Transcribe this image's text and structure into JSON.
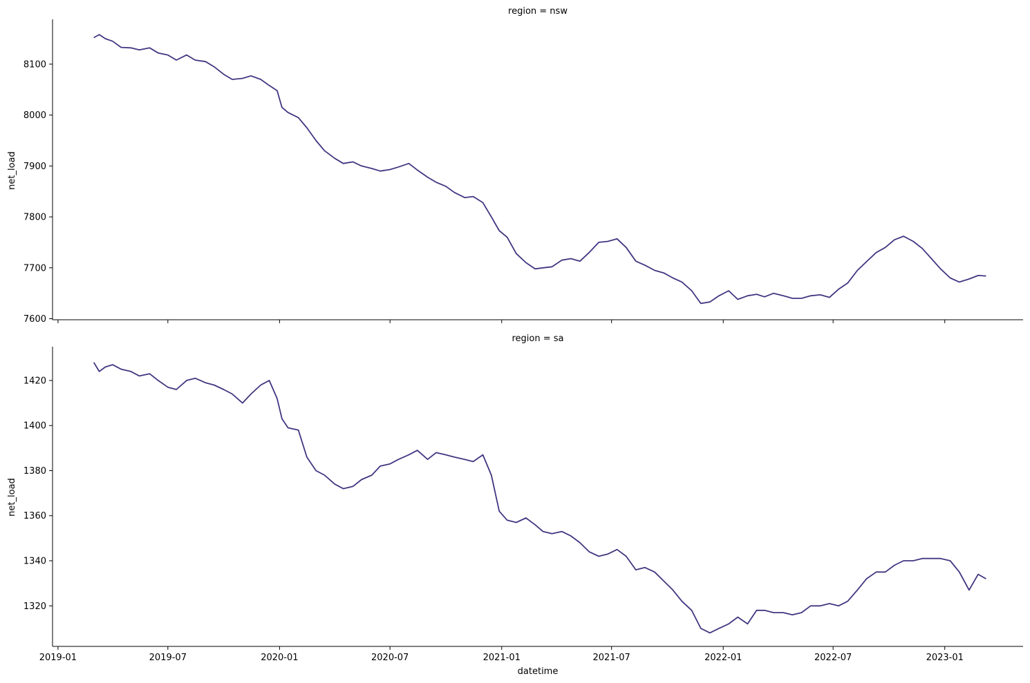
{
  "line_color": "#3f3680",
  "xlabel": "datetime",
  "x_ticks": [
    "2019-01",
    "2019-07",
    "2020-01",
    "2020-07",
    "2021-01",
    "2021-07",
    "2022-01",
    "2022-07",
    "2023-01"
  ],
  "chart_data": [
    {
      "type": "line",
      "title": "region = nsw",
      "xlabel": "",
      "ylabel": "net_load",
      "x_range": [
        "2018-12-23",
        "2023-05-10"
      ],
      "ylim": [
        7598,
        8188
      ],
      "y_ticks": [
        7600,
        7700,
        7800,
        7900,
        8000,
        8100
      ],
      "grid": false,
      "series": [
        {
          "x": [
            "2019-03-01",
            "2019-03-10",
            "2019-03-20",
            "2019-04-01",
            "2019-04-15",
            "2019-05-01",
            "2019-05-15",
            "2019-06-01",
            "2019-06-15",
            "2019-07-01",
            "2019-07-15",
            "2019-08-01",
            "2019-08-15",
            "2019-09-01",
            "2019-09-15",
            "2019-10-01",
            "2019-10-15",
            "2019-11-01",
            "2019-11-15",
            "2019-12-01",
            "2019-12-15",
            "2019-12-28",
            "2020-01-05",
            "2020-01-15",
            "2020-02-01",
            "2020-02-15",
            "2020-03-01",
            "2020-03-15",
            "2020-04-01",
            "2020-04-15",
            "2020-05-01",
            "2020-05-15",
            "2020-06-01",
            "2020-06-15",
            "2020-07-01",
            "2020-07-15",
            "2020-08-01",
            "2020-08-15",
            "2020-09-01",
            "2020-09-15",
            "2020-10-01",
            "2020-10-15",
            "2020-11-01",
            "2020-11-15",
            "2020-12-01",
            "2020-12-15",
            "2020-12-28",
            "2021-01-10",
            "2021-01-25",
            "2021-02-10",
            "2021-02-25",
            "2021-03-10",
            "2021-03-25",
            "2021-04-10",
            "2021-04-25",
            "2021-05-10",
            "2021-05-25",
            "2021-06-10",
            "2021-06-25",
            "2021-07-10",
            "2021-07-25",
            "2021-08-10",
            "2021-08-25",
            "2021-09-10",
            "2021-09-25",
            "2021-10-10",
            "2021-10-25",
            "2021-11-10",
            "2021-11-25",
            "2021-12-10",
            "2021-12-25",
            "2022-01-10",
            "2022-01-25",
            "2022-02-10",
            "2022-02-25",
            "2022-03-10",
            "2022-03-25",
            "2022-04-10",
            "2022-04-25",
            "2022-05-10",
            "2022-05-25",
            "2022-06-10",
            "2022-06-25",
            "2022-07-10",
            "2022-07-25",
            "2022-08-10",
            "2022-08-25",
            "2022-09-10",
            "2022-09-25",
            "2022-10-10",
            "2022-10-25",
            "2022-11-10",
            "2022-11-25",
            "2022-12-10",
            "2022-12-25",
            "2023-01-10",
            "2023-01-25",
            "2023-02-10",
            "2023-02-25",
            "2023-03-10"
          ],
          "values": [
            8152,
            8158,
            8150,
            8145,
            8133,
            8132,
            8128,
            8132,
            8122,
            8118,
            8108,
            8118,
            8108,
            8105,
            8095,
            8080,
            8070,
            8072,
            8077,
            8070,
            8058,
            8048,
            8015,
            8005,
            7995,
            7975,
            7950,
            7930,
            7915,
            7905,
            7908,
            7900,
            7895,
            7890,
            7893,
            7898,
            7905,
            7892,
            7878,
            7868,
            7860,
            7848,
            7838,
            7840,
            7828,
            7800,
            7773,
            7760,
            7728,
            7710,
            7698,
            7700,
            7702,
            7715,
            7718,
            7713,
            7730,
            7750,
            7752,
            7757,
            7740,
            7713,
            7705,
            7695,
            7690,
            7680,
            7672,
            7655,
            7630,
            7633,
            7645,
            7655,
            7638,
            7645,
            7648,
            7643,
            7650,
            7645,
            7640,
            7640,
            7645,
            7647,
            7642,
            7658,
            7670,
            7695,
            7712,
            7730,
            7740,
            7755,
            7762,
            7752,
            7738,
            7718,
            7698,
            7680,
            7672,
            7678,
            7685,
            7684
          ]
        }
      ]
    },
    {
      "type": "line",
      "title": "region = sa",
      "xlabel": "datetime",
      "ylabel": "net_load",
      "x_range": [
        "2018-12-23",
        "2023-05-10"
      ],
      "ylim": [
        1302,
        1435
      ],
      "y_ticks": [
        1320,
        1340,
        1360,
        1380,
        1400,
        1420
      ],
      "grid": false,
      "series": [
        {
          "x": [
            "2019-03-01",
            "2019-03-10",
            "2019-03-20",
            "2019-04-01",
            "2019-04-15",
            "2019-05-01",
            "2019-05-15",
            "2019-06-01",
            "2019-06-15",
            "2019-07-01",
            "2019-07-15",
            "2019-08-01",
            "2019-08-15",
            "2019-09-01",
            "2019-09-15",
            "2019-10-01",
            "2019-10-15",
            "2019-11-01",
            "2019-11-15",
            "2019-12-01",
            "2019-12-15",
            "2019-12-28",
            "2020-01-05",
            "2020-01-15",
            "2020-02-01",
            "2020-02-15",
            "2020-03-01",
            "2020-03-15",
            "2020-04-01",
            "2020-04-15",
            "2020-05-01",
            "2020-05-15",
            "2020-06-01",
            "2020-06-15",
            "2020-07-01",
            "2020-07-15",
            "2020-08-01",
            "2020-08-15",
            "2020-09-01",
            "2020-09-15",
            "2020-10-01",
            "2020-10-15",
            "2020-11-01",
            "2020-11-15",
            "2020-12-01",
            "2020-12-15",
            "2020-12-28",
            "2021-01-10",
            "2021-01-25",
            "2021-02-10",
            "2021-02-25",
            "2021-03-10",
            "2021-03-25",
            "2021-04-10",
            "2021-04-25",
            "2021-05-10",
            "2021-05-25",
            "2021-06-10",
            "2021-06-25",
            "2021-07-10",
            "2021-07-25",
            "2021-08-10",
            "2021-08-25",
            "2021-09-10",
            "2021-09-25",
            "2021-10-10",
            "2021-10-25",
            "2021-11-10",
            "2021-11-25",
            "2021-12-10",
            "2021-12-25",
            "2022-01-10",
            "2022-01-25",
            "2022-02-10",
            "2022-02-25",
            "2022-03-10",
            "2022-03-25",
            "2022-04-10",
            "2022-04-25",
            "2022-05-10",
            "2022-05-25",
            "2022-06-10",
            "2022-06-25",
            "2022-07-10",
            "2022-07-25",
            "2022-08-10",
            "2022-08-25",
            "2022-09-10",
            "2022-09-25",
            "2022-10-10",
            "2022-10-25",
            "2022-11-10",
            "2022-11-25",
            "2022-12-10",
            "2022-12-25",
            "2023-01-10",
            "2023-01-25",
            "2023-02-10",
            "2023-02-25",
            "2023-03-10"
          ],
          "values": [
            1428,
            1424,
            1426,
            1427,
            1425,
            1424,
            1422,
            1423,
            1420,
            1417,
            1416,
            1420,
            1421,
            1419,
            1418,
            1416,
            1414,
            1410,
            1414,
            1418,
            1420,
            1412,
            1403,
            1399,
            1398,
            1386,
            1380,
            1378,
            1374,
            1372,
            1373,
            1376,
            1378,
            1382,
            1383,
            1385,
            1387,
            1389,
            1385,
            1388,
            1387,
            1386,
            1385,
            1384,
            1387,
            1378,
            1362,
            1358,
            1357,
            1359,
            1356,
            1353,
            1352,
            1353,
            1351,
            1348,
            1344,
            1342,
            1343,
            1345,
            1342,
            1336,
            1337,
            1335,
            1331,
            1327,
            1322,
            1318,
            1310,
            1308,
            1310,
            1312,
            1315,
            1312,
            1318,
            1318,
            1317,
            1317,
            1316,
            1317,
            1320,
            1320,
            1321,
            1320,
            1322,
            1327,
            1332,
            1335,
            1335,
            1338,
            1340,
            1340,
            1341,
            1341,
            1341,
            1340,
            1335,
            1327,
            1334,
            1332
          ]
        }
      ]
    }
  ]
}
